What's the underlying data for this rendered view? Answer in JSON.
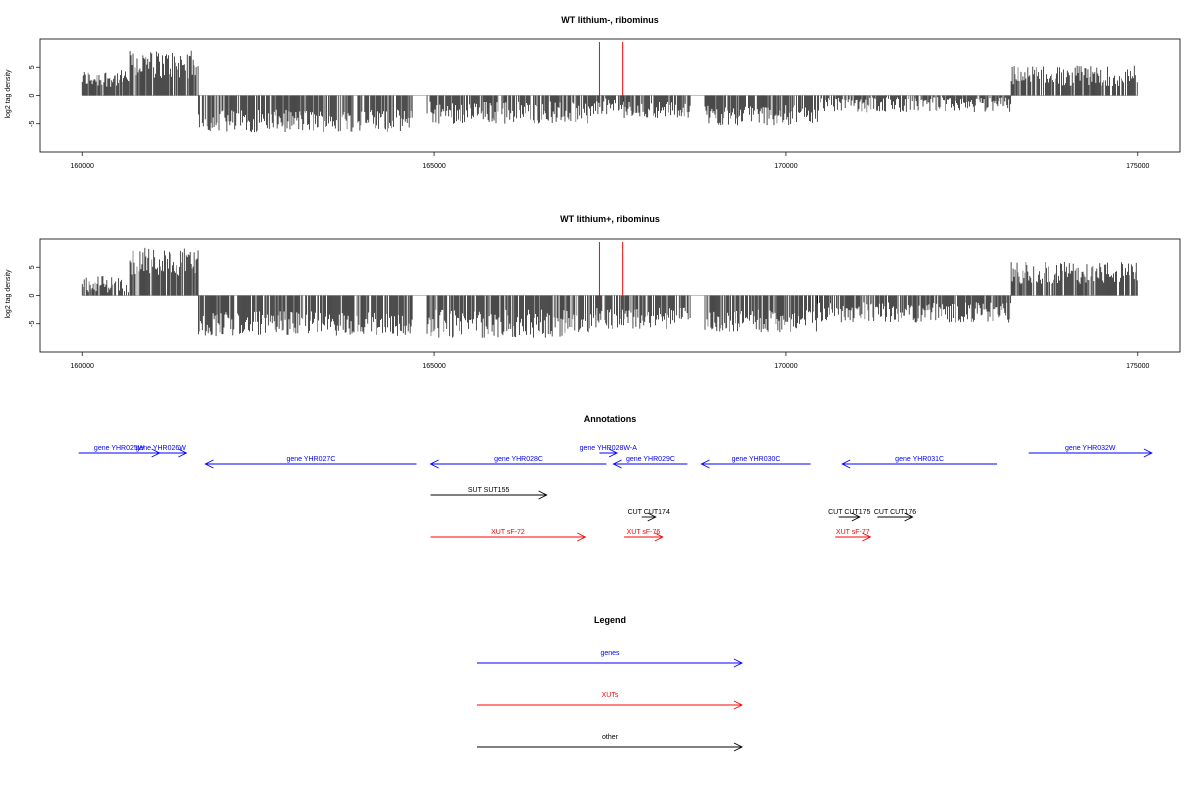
{
  "chart_data": [
    {
      "type": "bar",
      "title": "WT lithium-, ribominus",
      "xlabel": "",
      "ylabel": "log2 tag density",
      "xlim": [
        159400,
        175600
      ],
      "ylim": [
        -10,
        10
      ],
      "x_ticks": [
        160000,
        165000,
        170000,
        175000
      ],
      "y_ticks": [
        5,
        0,
        -5
      ],
      "markers": [
        {
          "x": 167350,
          "color": "#ff0000"
        },
        {
          "x": 167680,
          "color": "#ff0000"
        }
      ],
      "segments": [
        {
          "from": 160000,
          "to": 160680,
          "level": 3.0,
          "var": 1.5,
          "sign": 1
        },
        {
          "from": 160680,
          "to": 161650,
          "level": 5.5,
          "var": 2.5,
          "sign": 1
        },
        {
          "from": 161650,
          "to": 164700,
          "level": -4.5,
          "var": 2.0,
          "sign": -1
        },
        {
          "from": 164700,
          "to": 164900,
          "level": 0,
          "var": 0,
          "sign": 0
        },
        {
          "from": 164900,
          "to": 167300,
          "level": -3.0,
          "var": 2.0,
          "sign": -1
        },
        {
          "from": 167300,
          "to": 167700,
          "level": -2.0,
          "var": 1.5,
          "sign": -1
        },
        {
          "from": 167700,
          "to": 168650,
          "level": -2.5,
          "var": 1.5,
          "sign": -1
        },
        {
          "from": 168650,
          "to": 168850,
          "level": 0,
          "var": 0,
          "sign": 0
        },
        {
          "from": 168850,
          "to": 170450,
          "level": -3.5,
          "var": 1.8,
          "sign": -1
        },
        {
          "from": 170450,
          "to": 173200,
          "level": -1.5,
          "var": 1.5,
          "sign": -1
        },
        {
          "from": 173200,
          "to": 175000,
          "level": 3.5,
          "var": 1.8,
          "sign": 1
        }
      ]
    },
    {
      "type": "bar",
      "title": "WT lithium+, ribominus",
      "xlabel": "",
      "ylabel": "log2 tag density",
      "xlim": [
        159400,
        175600
      ],
      "ylim": [
        -10,
        10
      ],
      "x_ticks": [
        160000,
        165000,
        170000,
        175000
      ],
      "y_ticks": [
        5,
        0,
        -5
      ],
      "markers": [
        {
          "x": 167350,
          "color": "#ff0000"
        },
        {
          "x": 167680,
          "color": "#ff0000"
        }
      ],
      "segments": [
        {
          "from": 160000,
          "to": 160680,
          "level": 2.0,
          "var": 1.5,
          "sign": 1
        },
        {
          "from": 160680,
          "to": 161650,
          "level": 6.0,
          "var": 2.5,
          "sign": 1
        },
        {
          "from": 161650,
          "to": 164700,
          "level": -5.0,
          "var": 2.2,
          "sign": -1
        },
        {
          "from": 164700,
          "to": 164900,
          "level": 0,
          "var": 0,
          "sign": 0
        },
        {
          "from": 164900,
          "to": 167300,
          "level": -5.0,
          "var": 2.5,
          "sign": -1
        },
        {
          "from": 167300,
          "to": 167700,
          "level": -4.0,
          "var": 2.0,
          "sign": -1
        },
        {
          "from": 167700,
          "to": 168650,
          "level": -4.0,
          "var": 2.0,
          "sign": -1
        },
        {
          "from": 168650,
          "to": 168850,
          "level": 0,
          "var": 0,
          "sign": 0
        },
        {
          "from": 168850,
          "to": 170450,
          "level": -4.5,
          "var": 2.0,
          "sign": -1
        },
        {
          "from": 170450,
          "to": 173200,
          "level": -3.0,
          "var": 1.8,
          "sign": -1
        },
        {
          "from": 173200,
          "to": 175000,
          "level": 4.0,
          "var": 2.0,
          "sign": 1
        }
      ]
    }
  ],
  "annotations": {
    "title": "Annotations",
    "colors": {
      "gene": "#0000ff",
      "xut": "#ff0000",
      "other": "#000000"
    },
    "items": [
      {
        "label": "gene YHR025W",
        "start": 159950,
        "end": 161100,
        "dir": "right",
        "kind": "gene",
        "row": 0
      },
      {
        "label": "gene YHR026W",
        "start": 160750,
        "end": 161480,
        "dir": "right",
        "kind": "gene",
        "row": 0
      },
      {
        "label": "gene YHR027C",
        "start": 161750,
        "end": 164750,
        "dir": "left",
        "kind": "gene",
        "row": 1
      },
      {
        "label": "gene YHR028C",
        "start": 164950,
        "end": 167450,
        "dir": "left",
        "kind": "gene",
        "row": 1
      },
      {
        "label": "gene YHR028W-A",
        "start": 167350,
        "end": 167600,
        "dir": "right",
        "kind": "gene",
        "row": 0
      },
      {
        "label": "gene YHR029C",
        "start": 167550,
        "end": 168600,
        "dir": "left",
        "kind": "gene",
        "row": 1
      },
      {
        "label": "gene YHR030C",
        "start": 168800,
        "end": 170350,
        "dir": "left",
        "kind": "gene",
        "row": 1
      },
      {
        "label": "gene YHR031C",
        "start": 170800,
        "end": 173000,
        "dir": "left",
        "kind": "gene",
        "row": 1
      },
      {
        "label": "gene YHR032W",
        "start": 173450,
        "end": 175200,
        "dir": "right",
        "kind": "gene",
        "row": 0
      },
      {
        "label": "SUT SUT155",
        "start": 164950,
        "end": 166600,
        "dir": "right",
        "kind": "other",
        "row": 2
      },
      {
        "label": "CUT CUT174",
        "start": 167950,
        "end": 168150,
        "dir": "right",
        "kind": "other",
        "row": 3
      },
      {
        "label": "CUT CUT175",
        "start": 170750,
        "end": 171050,
        "dir": "right",
        "kind": "other",
        "row": 3
      },
      {
        "label": "CUT CUT176",
        "start": 171300,
        "end": 171800,
        "dir": "right",
        "kind": "other",
        "row": 3
      },
      {
        "label": "XUT sF-72",
        "start": 164950,
        "end": 167150,
        "dir": "right",
        "kind": "xut",
        "row": 4
      },
      {
        "label": "XUT sF-76",
        "start": 167700,
        "end": 168250,
        "dir": "right",
        "kind": "xut",
        "row": 4
      },
      {
        "label": "XUT sF-77",
        "start": 170700,
        "end": 171200,
        "dir": "right",
        "kind": "xut",
        "row": 4
      }
    ]
  },
  "legend": {
    "title": "Legend",
    "items": [
      {
        "label": "genes",
        "color": "#0000ff"
      },
      {
        "label": "XUTs",
        "color": "#ff0000"
      },
      {
        "label": "other",
        "color": "#000000"
      }
    ]
  }
}
